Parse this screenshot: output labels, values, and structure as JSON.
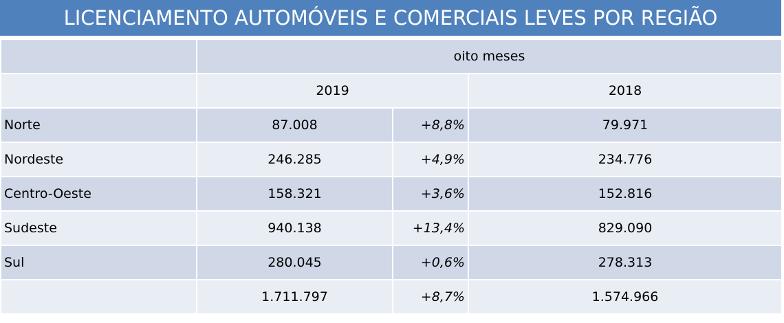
{
  "title": "LICENCIAMENTO AUTOMÓVEIS E COMERCIAIS LEVES POR REGIÃO",
  "table": {
    "period": "oito meses",
    "years": [
      "2019",
      "2018"
    ],
    "rows": [
      [
        "Norte",
        "87.008",
        "+8,8%",
        "79.971"
      ],
      [
        "Nordeste",
        "246.285",
        "+4,9%",
        "234.776"
      ],
      [
        "Centro-Oeste",
        "158.321",
        "+3,6%",
        "152.816"
      ],
      [
        "Sudeste",
        "940.138",
        "+13,4%",
        "829.090"
      ],
      [
        "Sul",
        "280.045",
        "+0,6%",
        "278.313"
      ]
    ],
    "total": [
      "1.711.797",
      "+8,7%",
      "1.574.966"
    ]
  }
}
